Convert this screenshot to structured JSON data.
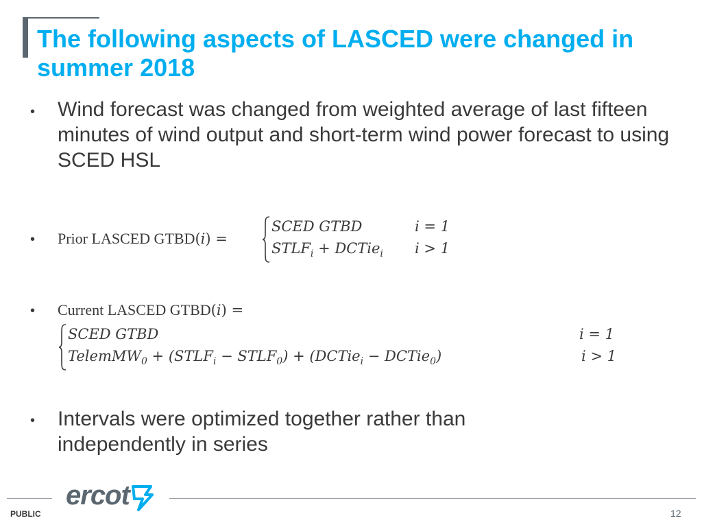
{
  "slide": {
    "title": "The following aspects of LASCED were changed in summer 2018",
    "bullet_glyph": "•",
    "bullet1_text": "Wind forecast was changed from weighted average of last fifteen minutes of wind output and short-term wind power forecast to using SCED HSL",
    "prior": {
      "label": "Prior LASCED GTBD",
      "arg": "i",
      "row1_expr": "SCED GTBD",
      "row1_cond": "i = 1",
      "row2_expr_a": "STLF",
      "row2_expr_b": " + DCTie",
      "row2_sub": "i",
      "row2_cond": "i > 1"
    },
    "current": {
      "label": "Current LASCED GTBD",
      "arg": "i",
      "row1_expr": "SCED GTBD",
      "row1_cond": "i = 1",
      "row2_p1": "TelemMW",
      "row2_p2": " + (STLF",
      "row2_p3": " − STLF",
      "row2_p4": ") + (DCTie",
      "row2_p5": " − DCTie",
      "row2_p6": ")",
      "sub_0": "0",
      "sub_i": "i",
      "row2_cond": "i > 1"
    },
    "bullet4_text": "Intervals were optimized together rather than independently in series"
  },
  "footer": {
    "logo_text": "ercot",
    "classification": "PUBLIC",
    "page_number": "12"
  },
  "colors": {
    "title": "#00aeef",
    "body_text": "#3a3a3a",
    "accent_gray": "#5b6770"
  }
}
